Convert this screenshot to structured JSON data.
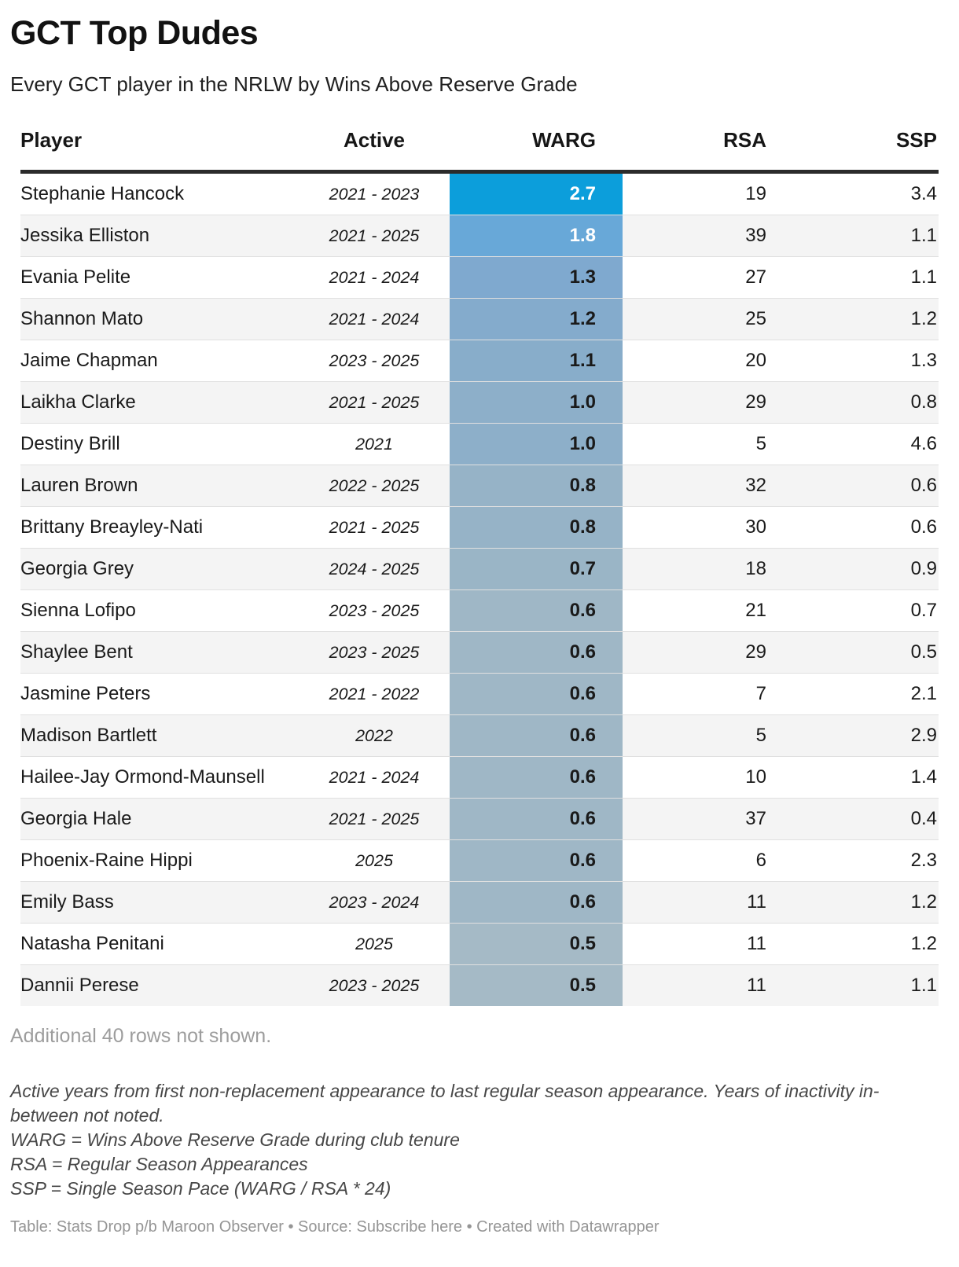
{
  "header": {
    "title": "GCT Top Dudes",
    "subtitle": "Every GCT player in the NRLW by Wins Above Reserve Grade"
  },
  "chart_data": {
    "type": "table",
    "title": "GCT Top Dudes",
    "subtitle": "Every GCT player in the NRLW by Wins Above Reserve Grade",
    "columns": [
      "Player",
      "Active",
      "WARG",
      "RSA",
      "SSP"
    ],
    "heatmap_column": "WARG",
    "heatmap_scale": {
      "high_color": "#0c9edb",
      "low_color": "#a5bac6"
    },
    "rows": [
      {
        "player": "Stephanie Hancock",
        "active": "2021 - 2023",
        "warg": 2.7,
        "rsa": 19,
        "ssp": 3.4,
        "warg_bg": "#0c9edb",
        "warg_text": "#ffffff"
      },
      {
        "player": "Jessika Elliston",
        "active": "2021 - 2025",
        "warg": 1.8,
        "rsa": 39,
        "ssp": 1.1,
        "warg_bg": "#68a8d8",
        "warg_text": "#ffffff"
      },
      {
        "player": "Evania Pelite",
        "active": "2021 - 2024",
        "warg": 1.3,
        "rsa": 27,
        "ssp": 1.1,
        "warg_bg": "#7fa9cf",
        "warg_text": "#1a1a1a"
      },
      {
        "player": "Shannon Mato",
        "active": "2021 - 2024",
        "warg": 1.2,
        "rsa": 25,
        "ssp": 1.2,
        "warg_bg": "#84abcc",
        "warg_text": "#1a1a1a"
      },
      {
        "player": "Jaime Chapman",
        "active": "2023 - 2025",
        "warg": 1.1,
        "rsa": 20,
        "ssp": 1.3,
        "warg_bg": "#88adca",
        "warg_text": "#1a1a1a"
      },
      {
        "player": "Laikha Clarke",
        "active": "2021 - 2025",
        "warg": 1.0,
        "rsa": 29,
        "ssp": 0.8,
        "warg_bg": "#8dafc9",
        "warg_text": "#1a1a1a"
      },
      {
        "player": "Destiny Brill",
        "active": "2021",
        "warg": 1.0,
        "rsa": 5,
        "ssp": 4.6,
        "warg_bg": "#8dafc9",
        "warg_text": "#1a1a1a"
      },
      {
        "player": "Lauren Brown",
        "active": "2022 - 2025",
        "warg": 0.8,
        "rsa": 32,
        "ssp": 0.6,
        "warg_bg": "#96b3c7",
        "warg_text": "#1a1a1a"
      },
      {
        "player": "Brittany Breayley-Nati",
        "active": "2021 - 2025",
        "warg": 0.8,
        "rsa": 30,
        "ssp": 0.6,
        "warg_bg": "#96b3c7",
        "warg_text": "#1a1a1a"
      },
      {
        "player": "Georgia Grey",
        "active": "2024 - 2025",
        "warg": 0.7,
        "rsa": 18,
        "ssp": 0.9,
        "warg_bg": "#9ab5c6",
        "warg_text": "#1a1a1a"
      },
      {
        "player": "Sienna Lofipo",
        "active": "2023 - 2025",
        "warg": 0.6,
        "rsa": 21,
        "ssp": 0.7,
        "warg_bg": "#9fb7c6",
        "warg_text": "#1a1a1a"
      },
      {
        "player": "Shaylee Bent",
        "active": "2023 - 2025",
        "warg": 0.6,
        "rsa": 29,
        "ssp": 0.5,
        "warg_bg": "#9fb7c6",
        "warg_text": "#1a1a1a"
      },
      {
        "player": "Jasmine Peters",
        "active": "2021 - 2022",
        "warg": 0.6,
        "rsa": 7,
        "ssp": 2.1,
        "warg_bg": "#9fb7c6",
        "warg_text": "#1a1a1a"
      },
      {
        "player": "Madison Bartlett",
        "active": "2022",
        "warg": 0.6,
        "rsa": 5,
        "ssp": 2.9,
        "warg_bg": "#9fb7c6",
        "warg_text": "#1a1a1a"
      },
      {
        "player": "Hailee-Jay Ormond-Maunsell",
        "active": "2021 - 2024",
        "warg": 0.6,
        "rsa": 10,
        "ssp": 1.4,
        "warg_bg": "#9fb7c6",
        "warg_text": "#1a1a1a"
      },
      {
        "player": "Georgia Hale",
        "active": "2021 - 2025",
        "warg": 0.6,
        "rsa": 37,
        "ssp": 0.4,
        "warg_bg": "#9fb7c6",
        "warg_text": "#1a1a1a"
      },
      {
        "player": "Phoenix-Raine Hippi",
        "active": "2025",
        "warg": 0.6,
        "rsa": 6,
        "ssp": 2.3,
        "warg_bg": "#9fb7c6",
        "warg_text": "#1a1a1a"
      },
      {
        "player": "Emily Bass",
        "active": "2023 - 2024",
        "warg": 0.6,
        "rsa": 11,
        "ssp": 1.2,
        "warg_bg": "#9fb7c6",
        "warg_text": "#1a1a1a"
      },
      {
        "player": "Natasha Penitani",
        "active": "2025",
        "warg": 0.5,
        "rsa": 11,
        "ssp": 1.2,
        "warg_bg": "#a5bac6",
        "warg_text": "#1a1a1a"
      },
      {
        "player": "Dannii Perese",
        "active": "2023 - 2025",
        "warg": 0.5,
        "rsa": 11,
        "ssp": 1.1,
        "warg_bg": "#a5bac6",
        "warg_text": "#1a1a1a"
      }
    ]
  },
  "notes": {
    "additional_rows": "Additional 40 rows not shown.",
    "footnote_lines": [
      "Active years from first non-replacement appearance to last regular season appearance. Years of inactivity in-between not noted.",
      "WARG = Wins Above Reserve Grade during club tenure",
      "RSA = Regular Season Appearances",
      "SSP = Single Season Pace (WARG / RSA * 24)"
    ],
    "attribution": "Table: Stats Drop p/b Maroon Observer • Source: Subscribe here • Created with Datawrapper"
  }
}
